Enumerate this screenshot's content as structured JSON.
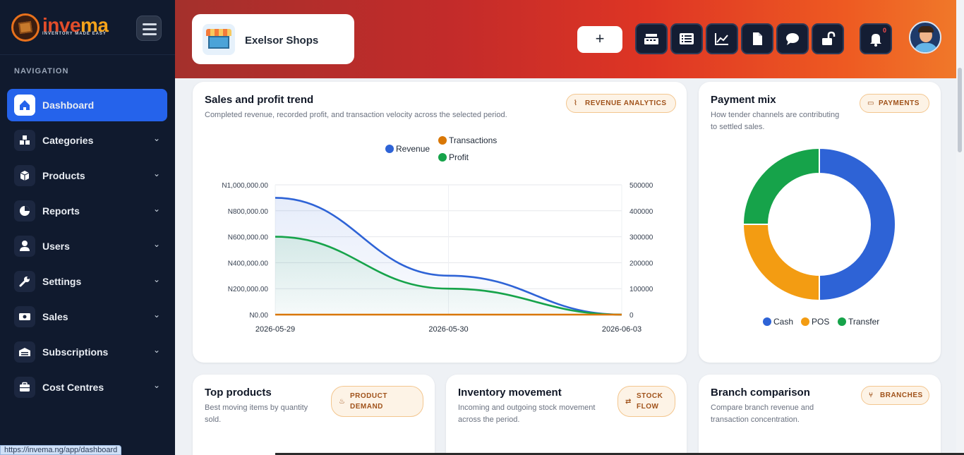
{
  "brand": {
    "name_part1": "inve",
    "name_part2": "ma",
    "tagline": "INVENTORY MADE EASY"
  },
  "sidebar": {
    "section_title": "NAVIGATION",
    "items": [
      {
        "label": "Dashboard",
        "icon": "home-icon"
      },
      {
        "label": "Categories",
        "icon": "cubes-icon"
      },
      {
        "label": "Products",
        "icon": "box-icon"
      },
      {
        "label": "Reports",
        "icon": "pie-chart-icon"
      },
      {
        "label": "Users",
        "icon": "user-icon"
      },
      {
        "label": "Settings",
        "icon": "wrench-icon"
      },
      {
        "label": "Sales",
        "icon": "money-icon"
      },
      {
        "label": "Subscriptions",
        "icon": "warehouse-icon"
      },
      {
        "label": "Cost Centres",
        "icon": "briefcase-icon"
      }
    ]
  },
  "status_bar": {
    "url": "https://invema.ng/app/dashboard"
  },
  "header": {
    "shop_name": "Exelsor Shops",
    "add_label": "+",
    "buttons": [
      "cash-register-icon",
      "list-icon",
      "line-chart-icon",
      "file-icon",
      "comment-icon",
      "unlock-icon"
    ],
    "notification_count": "0"
  },
  "sales_trend": {
    "title": "Sales and profit trend",
    "subtitle": "Completed revenue, recorded profit, and transaction velocity across the selected period.",
    "badge": "REVENUE ANALYTICS",
    "chart_data": {
      "type": "line",
      "x": [
        "2026-05-29",
        "2026-05-30",
        "2026-06-03"
      ],
      "series": [
        {
          "name": "Revenue",
          "values": [
            900000,
            300000,
            0
          ],
          "color": "#2e63d6",
          "axis": "left"
        },
        {
          "name": "Transactions",
          "values": [
            0,
            0,
            0
          ],
          "color": "#d97706",
          "axis": "right"
        },
        {
          "name": "Profit",
          "values": [
            600000,
            200000,
            0
          ],
          "color": "#16a34a",
          "axis": "left"
        }
      ],
      "y_left_ticks": [
        "N0.00",
        "N200,000.00",
        "N400,000.00",
        "N600,000.00",
        "N800,000.00",
        "N1,000,000.00"
      ],
      "y_right_ticks": [
        "0",
        "100000",
        "200000",
        "300000",
        "400000",
        "500000"
      ],
      "ylim_left": [
        0,
        1000000
      ],
      "ylim_right": [
        0,
        500000
      ],
      "legend_position": "top",
      "grid": true
    }
  },
  "payment_mix": {
    "title": "Payment mix",
    "subtitle_line1": "How tender channels are contributing",
    "subtitle_line2": "to settled sales.",
    "badge": "PAYMENTS",
    "chart_data": {
      "type": "pie",
      "categories": [
        "Cash",
        "POS",
        "Transfer"
      ],
      "values": [
        50,
        25,
        25
      ],
      "colors": [
        "#2e63d6",
        "#f39c12",
        "#16a34a"
      ],
      "legend_position": "bottom"
    }
  },
  "top_products": {
    "title": "Top products",
    "subtitle_line1": "Best moving items by quantity",
    "subtitle_line2": "sold.",
    "badge_line1": "PRODUCT",
    "badge_line2": "DEMAND"
  },
  "inventory_movement": {
    "title": "Inventory movement",
    "subtitle_line1": "Incoming and outgoing stock movement",
    "subtitle_line2": "across the period.",
    "badge_line1": "STOCK",
    "badge_line2": "FLOW"
  },
  "branch_comparison": {
    "title": "Branch comparison",
    "subtitle_line1": "Compare branch revenue and",
    "subtitle_line2": "transaction concentration.",
    "badge": "BRANCHES"
  }
}
